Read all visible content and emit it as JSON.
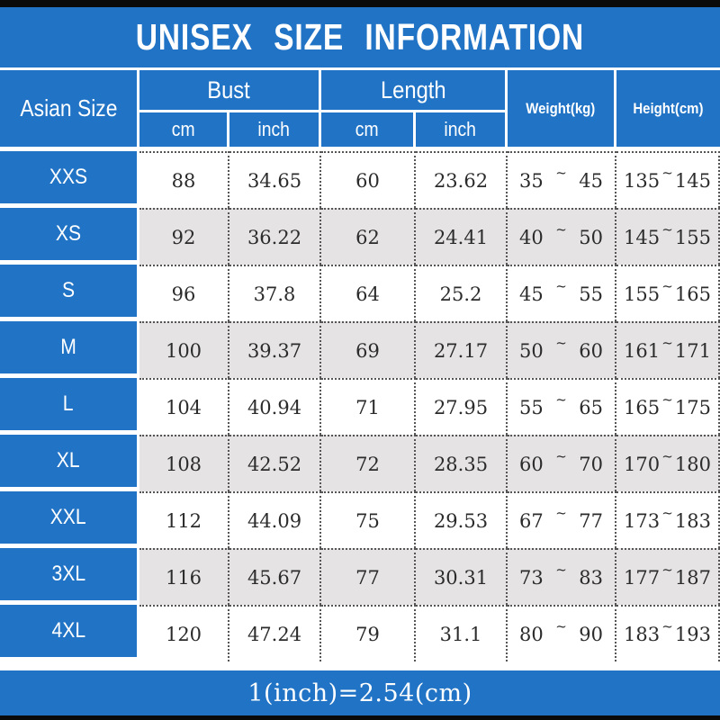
{
  "title": "UNISEX SIZE INFORMATION",
  "header": {
    "size_column": "Asian Size",
    "bust_group": "Bust",
    "length_group": "Length",
    "bust_cm": "cm",
    "bust_inch": "inch",
    "length_cm": "cm",
    "length_inch": "inch",
    "weight_column": "Weight(kg)",
    "height_column": "Height(cm)"
  },
  "tilde": "~",
  "rows": [
    {
      "size": "XXS",
      "bust_cm": "88",
      "bust_inch": "34.65",
      "length_cm": "60",
      "length_inch": "23.62",
      "weight_lo": "35",
      "weight_hi": "45",
      "height_lo": "135",
      "height_hi": "145"
    },
    {
      "size": "XS",
      "bust_cm": "92",
      "bust_inch": "36.22",
      "length_cm": "62",
      "length_inch": "24.41",
      "weight_lo": "40",
      "weight_hi": "50",
      "height_lo": "145",
      "height_hi": "155"
    },
    {
      "size": "S",
      "bust_cm": "96",
      "bust_inch": "37.8",
      "length_cm": "64",
      "length_inch": "25.2",
      "weight_lo": "45",
      "weight_hi": "55",
      "height_lo": "155",
      "height_hi": "165"
    },
    {
      "size": "M",
      "bust_cm": "100",
      "bust_inch": "39.37",
      "length_cm": "69",
      "length_inch": "27.17",
      "weight_lo": "50",
      "weight_hi": "60",
      "height_lo": "161",
      "height_hi": "171"
    },
    {
      "size": "L",
      "bust_cm": "104",
      "bust_inch": "40.94",
      "length_cm": "71",
      "length_inch": "27.95",
      "weight_lo": "55",
      "weight_hi": "65",
      "height_lo": "165",
      "height_hi": "175"
    },
    {
      "size": "XL",
      "bust_cm": "108",
      "bust_inch": "42.52",
      "length_cm": "72",
      "length_inch": "28.35",
      "weight_lo": "60",
      "weight_hi": "70",
      "height_lo": "170",
      "height_hi": "180"
    },
    {
      "size": "XXL",
      "bust_cm": "112",
      "bust_inch": "44.09",
      "length_cm": "75",
      "length_inch": "29.53",
      "weight_lo": "67",
      "weight_hi": "77",
      "height_lo": "173",
      "height_hi": "183"
    },
    {
      "size": "3XL",
      "bust_cm": "116",
      "bust_inch": "45.67",
      "length_cm": "77",
      "length_inch": "30.31",
      "weight_lo": "73",
      "weight_hi": "83",
      "height_lo": "177",
      "height_hi": "187"
    },
    {
      "size": "4XL",
      "bust_cm": "120",
      "bust_inch": "47.24",
      "length_cm": "79",
      "length_inch": "31.1",
      "weight_lo": "80",
      "weight_hi": "90",
      "height_lo": "183",
      "height_hi": "193"
    }
  ],
  "footer": "1(inch)=2.54(cm)",
  "colors": {
    "blue": "#2173c5",
    "alt_row_gray": "#e5e3e4",
    "bar_black": "#0a0a0a",
    "text_white": "#ffffff",
    "text_dark": "#2b2b2b"
  },
  "chart_data": {
    "type": "table",
    "title": "UNISEX SIZE INFORMATION",
    "columns": [
      "Asian Size",
      "Bust cm",
      "Bust inch",
      "Length cm",
      "Length inch",
      "Weight(kg)",
      "Height(cm)"
    ],
    "rows": [
      [
        "XXS",
        88,
        34.65,
        60,
        23.62,
        "35~45",
        "135~145"
      ],
      [
        "XS",
        92,
        36.22,
        62,
        24.41,
        "40~50",
        "145~155"
      ],
      [
        "S",
        96,
        37.8,
        64,
        25.2,
        "45~55",
        "155~165"
      ],
      [
        "M",
        100,
        39.37,
        69,
        27.17,
        "50~60",
        "161~171"
      ],
      [
        "L",
        104,
        40.94,
        71,
        27.95,
        "55~65",
        "165~175"
      ],
      [
        "XL",
        108,
        42.52,
        72,
        28.35,
        "60~70",
        "170~180"
      ],
      [
        "XXL",
        112,
        44.09,
        75,
        29.53,
        "67~77",
        "173~183"
      ],
      [
        "3XL",
        116,
        45.67,
        77,
        30.31,
        "73~83",
        "177~187"
      ],
      [
        "4XL",
        120,
        47.24,
        79,
        31.1,
        "80~90",
        "183~193"
      ]
    ],
    "note": "1(inch)=2.54(cm)"
  }
}
